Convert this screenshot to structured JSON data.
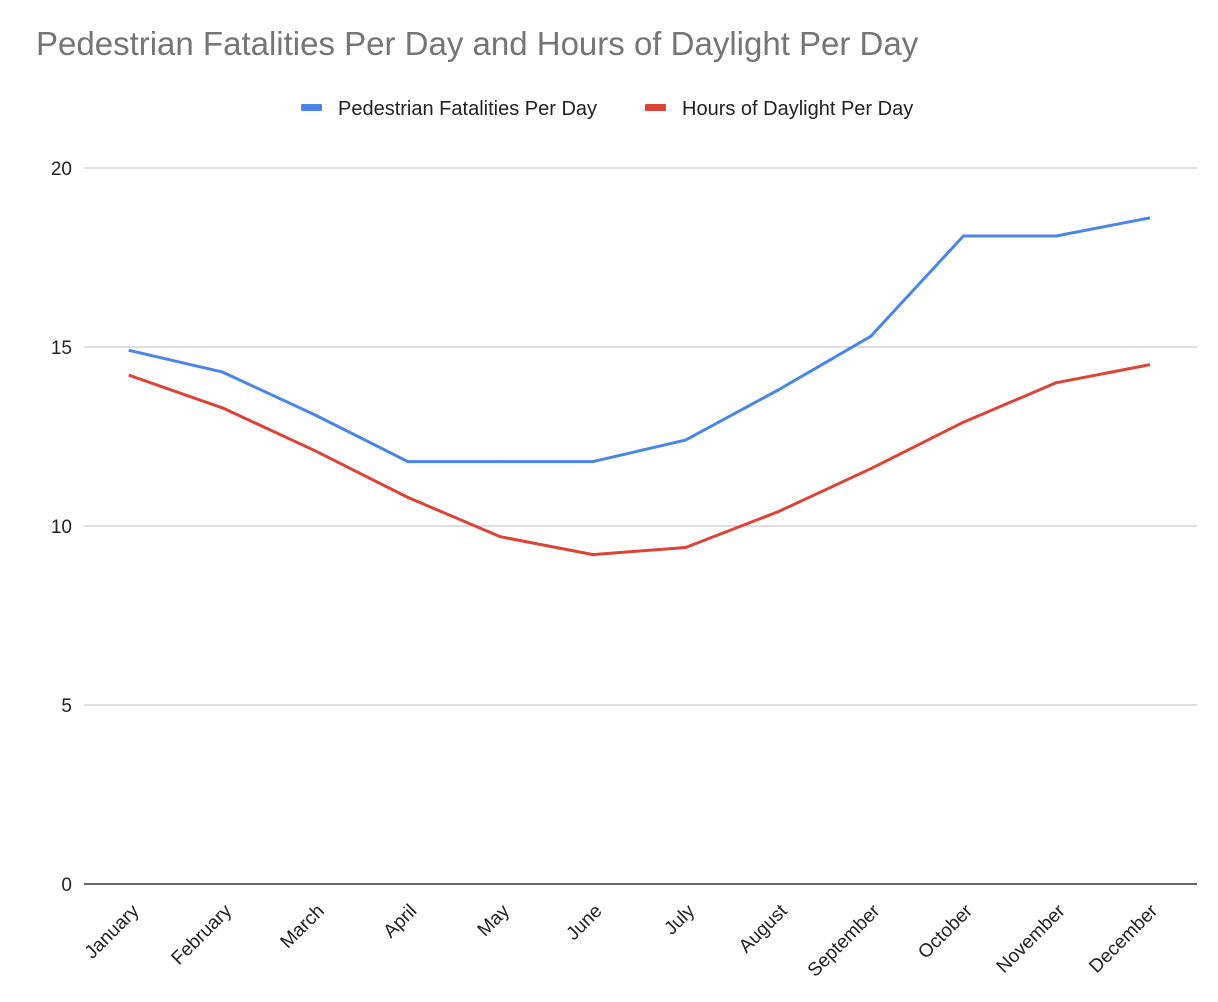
{
  "chart_data": {
    "type": "line",
    "title": "Pedestrian Fatalities Per Day and Hours of Daylight Per Day",
    "xlabel": "",
    "ylabel": "",
    "ylim": [
      0,
      20
    ],
    "yticks": [
      "0",
      "5",
      "10",
      "15",
      "20"
    ],
    "grid": true,
    "legend_position": "top",
    "categories": [
      "January",
      "February",
      "March",
      "April",
      "May",
      "June",
      "July",
      "August",
      "September",
      "October",
      "November",
      "December"
    ],
    "series": [
      {
        "name": "Pedestrian Fatalities Per Day",
        "color": "#4a86e8",
        "values": [
          14.9,
          14.3,
          13.1,
          11.8,
          11.8,
          11.8,
          12.4,
          13.8,
          15.3,
          18.1,
          18.1,
          18.6
        ]
      },
      {
        "name": "Hours of Daylight Per Day",
        "color": "#dc4437",
        "values": [
          14.2,
          13.3,
          12.1,
          10.8,
          9.7,
          9.2,
          9.4,
          10.4,
          11.6,
          12.9,
          14.0,
          14.5
        ]
      }
    ]
  }
}
